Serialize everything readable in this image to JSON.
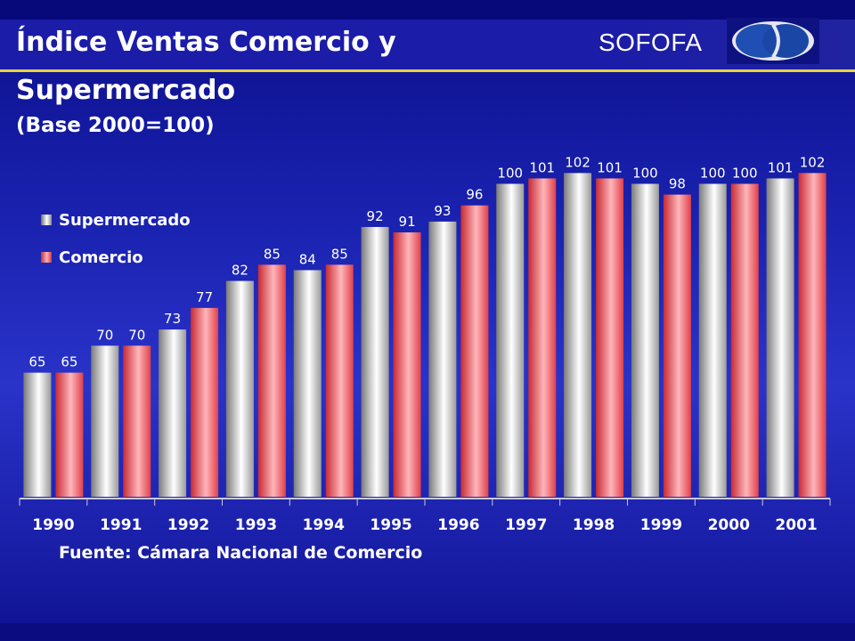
{
  "header": {
    "title_line1": "Índice Ventas Comercio y",
    "title_line2": "Supermercado",
    "subtitle": "(Base 2000=100)",
    "brand": "SOFOFA",
    "logo_icon": "sofofa-logo-icon"
  },
  "source": "Fuente: Cámara Nacional de Comercio",
  "colors": {
    "supermercado": "#d8d8d8",
    "comercio": "#f04a52",
    "accent_rule": "#e8d23c"
  },
  "chart_data": {
    "type": "bar",
    "categories": [
      "1990",
      "1991",
      "1992",
      "1993",
      "1994",
      "1995",
      "1996",
      "1997",
      "1998",
      "1999",
      "2000",
      "2001"
    ],
    "series": [
      {
        "name": "Supermercado",
        "values": [
          65,
          70,
          73,
          82,
          84,
          92,
          93,
          100,
          102,
          100,
          100,
          101
        ]
      },
      {
        "name": "Comercio",
        "values": [
          65,
          70,
          77,
          85,
          85,
          91,
          96,
          101,
          101,
          98,
          100,
          102
        ]
      }
    ],
    "title": "Índice Ventas Comercio y Supermercado",
    "subtitle": "(Base 2000=100)",
    "xlabel": "",
    "ylabel": "",
    "ylim": [
      42,
      108
    ],
    "grid": false,
    "legend": "left"
  }
}
